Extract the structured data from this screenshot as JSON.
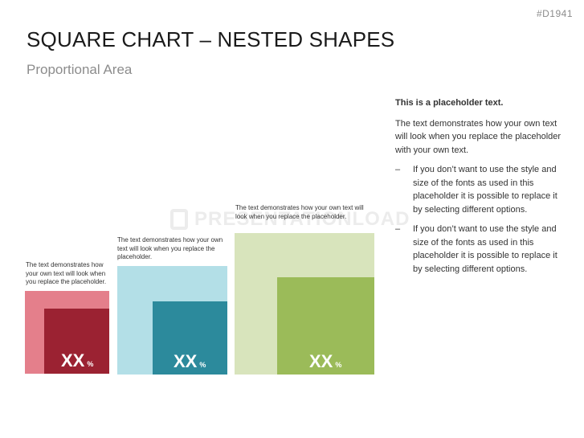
{
  "slide_id": "#D1941",
  "title": "SQUARE CHART – NESTED SHAPES",
  "subtitle": "Proportional Area",
  "watermark": "PRESENTATIONLOAD",
  "squares": [
    {
      "caption": "The text demonstrates how your own text will look when you replace the placeholder.",
      "value": "XX",
      "unit": "%",
      "outer_color": "#e47f8b",
      "inner_color": "#9b2232"
    },
    {
      "caption": "The text demonstrates how your own text will look when you replace the placeholder.",
      "value": "XX",
      "unit": "%",
      "outer_color": "#b3dfe7",
      "inner_color": "#2c8a9c"
    },
    {
      "caption": "The text demonstrates how your own text will look when you replace the placeholder.",
      "value": "XX",
      "unit": "%",
      "outer_color": "#d8e4bc",
      "inner_color": "#9bbb59"
    }
  ],
  "text_panel": {
    "heading": "This is a placeholder text.",
    "paragraph": "The text demonstrates how your own text will look when you replace the placeholder with your own text.",
    "bullet_marker": "–",
    "bullets": [
      "If you don’t want to use the style and size of the fonts as used in this placeholder it is possible to replace it by selecting different options.",
      "If you don’t want to use the style and size of the fonts as used in this placeholder it is possible to replace it by selecting different options."
    ]
  }
}
